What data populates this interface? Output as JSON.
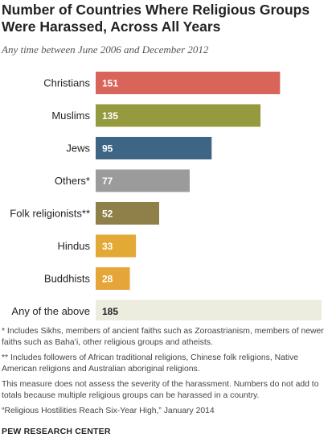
{
  "chart_data": {
    "type": "bar",
    "orientation": "horizontal",
    "title": "Number of Countries Where Religious Groups Were Harassed, Across All Years",
    "subtitle": "Any time between June 2006 and December 2012",
    "categories": [
      "Christians",
      "Muslims",
      "Jews",
      "Others*",
      "Folk religionists**",
      "Hindus",
      "Buddhists",
      "Any of the above"
    ],
    "values": [
      151,
      135,
      95,
      77,
      52,
      33,
      28,
      185
    ],
    "colors": [
      "#d9645a",
      "#949a3d",
      "#3f6585",
      "#9b9b9b",
      "#8f8049",
      "#e2a935",
      "#e6a539",
      "#ececdf"
    ],
    "label_colors": [
      "#ffffff",
      "#ffffff",
      "#ffffff",
      "#ffffff",
      "#ffffff",
      "#ffffff",
      "#ffffff",
      "#222222"
    ],
    "xlim": [
      0,
      185
    ],
    "grid": false,
    "legend": "none"
  },
  "notes": [
    "* Includes Sikhs, members of ancient faiths such as Zoroastrianism, members of newer faiths such as Baha’i, other religious groups and atheists.",
    "** Includes followers of African traditional religions, Chinese folk religions, Native American religions and Australian aboriginal religions.",
    "This measure does not assess the severity of the harassment. Numbers do not add to totals because multiple religious groups can be harassed in a country.",
    "“Religious Hostilities Reach Six-Year High,” January 2014"
  ],
  "source": "PEW RESEARCH CENTER"
}
